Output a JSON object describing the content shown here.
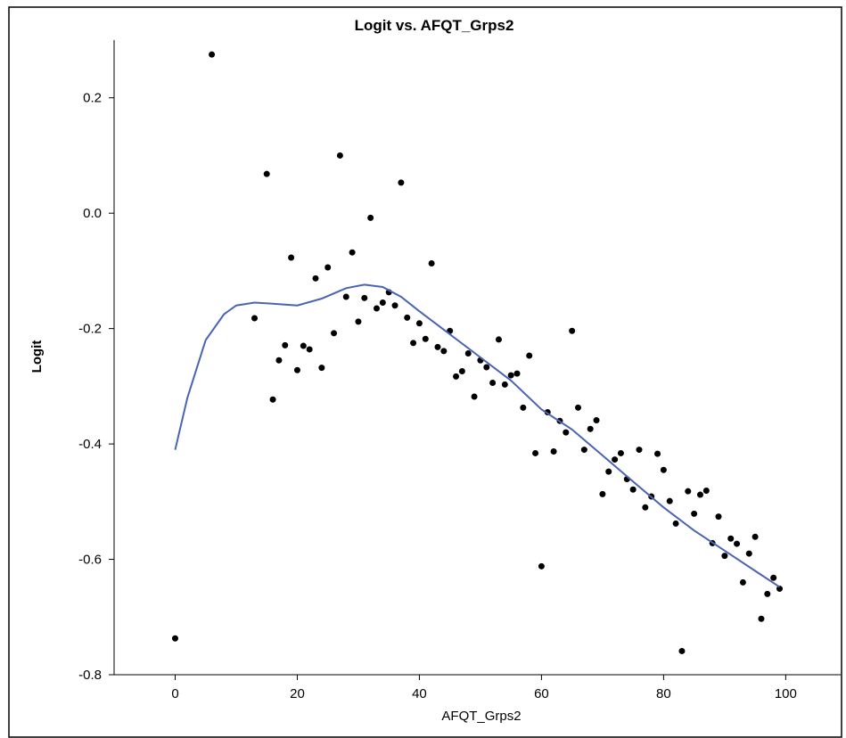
{
  "chart_data": {
    "type": "scatter",
    "title": "Logit vs. AFQT_Grps2",
    "x_label": "AFQT_Grps2",
    "y_label": "Logit",
    "xlim": [
      -10,
      109
    ],
    "ylim": [
      -0.8,
      0.3
    ],
    "xticks": [
      0,
      20,
      40,
      60,
      80,
      100
    ],
    "yticks": [
      -0.8,
      -0.6,
      -0.4,
      -0.2,
      {
        "value": 0,
        "label": "0.0"
      },
      0.2
    ],
    "series": [
      {
        "kind": "points",
        "color": "#000000",
        "x": [
          0,
          6,
          13,
          15,
          16,
          17,
          18,
          19,
          20,
          21,
          22,
          23,
          24,
          25,
          26,
          27,
          28,
          29,
          30,
          31,
          32,
          33,
          34,
          35,
          36,
          37,
          38,
          39,
          40,
          41,
          42,
          43,
          44,
          45,
          46,
          47,
          48,
          49,
          50,
          51,
          52,
          53,
          54,
          55,
          56,
          57,
          58,
          59,
          60,
          61,
          62,
          63,
          64,
          65,
          66,
          67,
          68,
          69,
          70,
          71,
          72,
          73,
          74,
          75,
          76,
          77,
          78,
          79,
          80,
          81,
          82,
          83,
          84,
          85,
          86,
          87,
          88,
          89,
          90,
          91,
          92,
          93,
          94,
          95,
          96,
          97,
          98,
          99
        ],
        "y": [
          -0.737,
          0.275,
          -0.182,
          0.068,
          -0.323,
          -0.255,
          -0.229,
          -0.077,
          -0.272,
          -0.23,
          -0.236,
          -0.113,
          -0.268,
          -0.094,
          -0.208,
          0.1,
          -0.145,
          -0.068,
          -0.188,
          -0.147,
          -0.008,
          -0.165,
          -0.155,
          -0.137,
          -0.16,
          0.053,
          -0.181,
          -0.225,
          -0.191,
          -0.218,
          -0.087,
          -0.232,
          -0.239,
          -0.204,
          -0.283,
          -0.274,
          -0.243,
          -0.318,
          -0.255,
          -0.267,
          -0.294,
          -0.219,
          -0.297,
          -0.281,
          -0.278,
          -0.337,
          -0.247,
          -0.416,
          -0.612,
          -0.345,
          -0.413,
          -0.36,
          -0.38,
          -0.204,
          -0.337,
          -0.41,
          -0.374,
          -0.359,
          -0.487,
          -0.448,
          -0.427,
          -0.416,
          -0.461,
          -0.479,
          -0.41,
          -0.51,
          -0.491,
          -0.417,
          -0.445,
          -0.499,
          -0.538,
          -0.759,
          -0.482,
          -0.521,
          -0.488,
          -0.481,
          -0.572,
          -0.526,
          -0.594,
          -0.564,
          -0.573,
          -0.64,
          -0.59,
          -0.561,
          -0.703,
          -0.66,
          -0.632,
          -0.651
        ]
      },
      {
        "kind": "line",
        "color": "#4a64b4",
        "x": [
          0,
          2,
          5,
          8,
          10,
          13,
          16,
          20,
          24,
          28,
          31,
          34,
          37,
          40,
          45,
          50,
          55,
          60,
          65,
          70,
          75,
          80,
          85,
          90,
          95,
          99
        ],
        "y": [
          -0.41,
          -0.32,
          -0.22,
          -0.175,
          -0.16,
          -0.155,
          -0.157,
          -0.16,
          -0.148,
          -0.13,
          -0.124,
          -0.128,
          -0.145,
          -0.17,
          -0.21,
          -0.25,
          -0.29,
          -0.34,
          -0.375,
          -0.42,
          -0.465,
          -0.51,
          -0.55,
          -0.585,
          -0.62,
          -0.648
        ]
      }
    ]
  }
}
